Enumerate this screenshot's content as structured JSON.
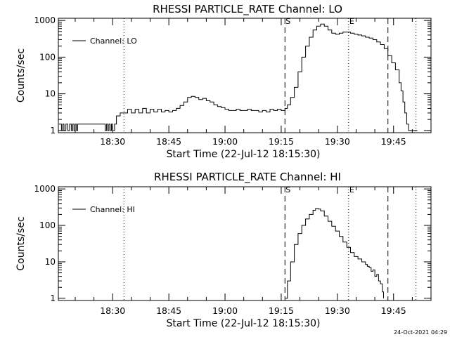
{
  "chart_data": [
    {
      "type": "line",
      "title": "RHESSI PARTICLE_RATE Channel: LO",
      "xlabel": "Start Time (22-Jul-12 18:15:30)",
      "ylabel": "Counts/sec",
      "yscale": "log",
      "xlim": [
        "18:15:30",
        "19:55:00"
      ],
      "ylim": [
        1,
        1000
      ],
      "xticks": [
        "18:30",
        "18:45",
        "19:00",
        "19:15",
        "19:30",
        "19:45"
      ],
      "yticks": [
        "1",
        "10",
        "100",
        "1000"
      ],
      "legend": "top-left",
      "series": [
        {
          "name": "Channel: LO",
          "x": [
            "18:15:40",
            "18:16:00",
            "18:16:20",
            "18:16:40",
            "18:17:00",
            "18:17:30",
            "18:18:00",
            "18:18:30",
            "18:19:00",
            "18:19:20",
            "18:19:40",
            "18:20:00",
            "18:20:20",
            "18:20:40",
            "18:28:00",
            "18:28:20",
            "18:28:40",
            "18:29:00",
            "18:29:20",
            "18:29:40",
            "18:30:00",
            "18:30:30",
            "18:31:00",
            "18:31:30",
            "18:32:00",
            "18:33:00",
            "18:34:00",
            "18:35:00",
            "18:36:00",
            "18:37:00",
            "18:38:00",
            "18:39:00",
            "18:40:00",
            "18:41:00",
            "18:42:00",
            "18:43:00",
            "18:44:00",
            "18:45:00",
            "18:46:00",
            "18:47:00",
            "18:48:00",
            "18:49:00",
            "18:50:00",
            "18:51:00",
            "18:52:00",
            "18:53:00",
            "18:54:00",
            "18:55:00",
            "18:56:00",
            "18:57:00",
            "18:58:00",
            "18:59:00",
            "19:00:00",
            "19:01:00",
            "19:02:00",
            "19:03:00",
            "19:04:00",
            "19:05:00",
            "19:06:00",
            "19:07:00",
            "19:08:00",
            "19:09:00",
            "19:10:00",
            "19:11:00",
            "19:12:00",
            "19:13:00",
            "19:14:00",
            "19:15:00",
            "19:16:00",
            "19:16:40",
            "19:17:30",
            "19:18:30",
            "19:19:30",
            "19:20:30",
            "19:21:30",
            "19:22:30",
            "19:23:30",
            "19:24:30",
            "19:25:30",
            "19:26:30",
            "19:27:30",
            "19:28:30",
            "19:29:30",
            "19:30:30",
            "19:31:30",
            "19:32:30",
            "19:33:30",
            "19:34:30",
            "19:35:30",
            "19:36:30",
            "19:37:30",
            "19:38:30",
            "19:39:30",
            "19:40:30",
            "19:41:30",
            "19:42:30",
            "19:43:30",
            "19:44:30",
            "19:45:30",
            "19:46:30",
            "19:47:00",
            "19:47:30",
            "19:48:00",
            "19:48:30",
            "19:49:00",
            "19:50:00",
            "19:51:00",
            "19:51:20"
          ],
          "y": [
            1.5,
            1.5,
            1,
            1.5,
            1,
            1.5,
            1,
            1.5,
            1,
            1.5,
            1,
            1.5,
            1,
            1.5,
            1,
            1.5,
            1,
            1.5,
            1,
            1.5,
            1,
            1.5,
            2.5,
            2.5,
            3,
            3,
            3.8,
            3,
            3.8,
            3,
            4,
            3,
            3.8,
            3.2,
            3.8,
            3.2,
            3.5,
            3.2,
            3.5,
            4,
            4.8,
            6,
            8,
            8.5,
            8,
            7,
            7.5,
            6.5,
            6,
            5,
            4.5,
            4.2,
            3.8,
            3.5,
            3.5,
            3.8,
            3.5,
            3.5,
            3.8,
            3.5,
            3.5,
            3.2,
            3.5,
            3.2,
            3.8,
            3.5,
            3.8,
            3.5,
            4,
            5,
            8,
            15,
            40,
            100,
            200,
            350,
            550,
            700,
            800,
            700,
            550,
            450,
            420,
            450,
            480,
            480,
            450,
            420,
            400,
            380,
            350,
            330,
            300,
            260,
            220,
            170,
            110,
            70,
            45,
            20,
            12,
            6,
            3,
            1.5,
            1,
            1,
            1,
            1
          ]
        }
      ],
      "markers": [
        {
          "label": "S",
          "x": "19:16:00",
          "style": "dashed"
        },
        {
          "label": "E",
          "x": "19:33:00",
          "style": "dotted"
        },
        {
          "label": "",
          "x": "18:33:00",
          "style": "dotted"
        },
        {
          "label": "",
          "x": "19:43:30",
          "style": "dashed"
        },
        {
          "label": "",
          "x": "19:51:00",
          "style": "dotted"
        }
      ]
    },
    {
      "type": "line",
      "title": "RHESSI PARTICLE_RATE Channel: HI",
      "xlabel": "Start Time (22-Jul-12 18:15:30)",
      "ylabel": "Counts/sec",
      "yscale": "log",
      "xlim": [
        "18:15:30",
        "19:55:00"
      ],
      "ylim": [
        1,
        1000
      ],
      "xticks": [
        "18:30",
        "18:45",
        "19:00",
        "19:15",
        "19:30",
        "19:45"
      ],
      "yticks": [
        "1",
        "10",
        "100",
        "1000"
      ],
      "legend": "top-left",
      "series": [
        {
          "name": "Channel: HI",
          "x": [
            "19:16:10",
            "19:16:40",
            "19:17:30",
            "19:18:30",
            "19:19:30",
            "19:20:30",
            "19:21:30",
            "19:22:30",
            "19:23:30",
            "19:24:10",
            "19:24:50",
            "19:25:30",
            "19:26:30",
            "19:27:30",
            "19:28:30",
            "19:29:30",
            "19:30:30",
            "19:31:30",
            "19:32:30",
            "19:33:30",
            "19:34:30",
            "19:35:30",
            "19:36:30",
            "19:37:30",
            "19:38:00",
            "19:38:30",
            "19:39:00",
            "19:39:30",
            "19:40:00",
            "19:40:30",
            "19:41:00",
            "19:41:30",
            "19:42:00",
            "19:42:20"
          ],
          "y": [
            1,
            3,
            10,
            30,
            60,
            100,
            150,
            200,
            260,
            290,
            280,
            250,
            180,
            130,
            95,
            70,
            50,
            35,
            25,
            18,
            14,
            12,
            10,
            8.5,
            7.5,
            7,
            5.5,
            6,
            4,
            4.5,
            3,
            2.5,
            1.5,
            1
          ]
        }
      ],
      "markers": [
        {
          "label": "S",
          "x": "19:16:00",
          "style": "dashed"
        },
        {
          "label": "E",
          "x": "19:33:00",
          "style": "dotted"
        },
        {
          "label": "",
          "x": "18:33:00",
          "style": "dotted"
        },
        {
          "label": "",
          "x": "19:43:30",
          "style": "dashed"
        },
        {
          "label": "",
          "x": "19:51:00",
          "style": "dotted"
        }
      ]
    }
  ],
  "footer": {
    "timestamp": "24-Oct-2021 04:29"
  }
}
